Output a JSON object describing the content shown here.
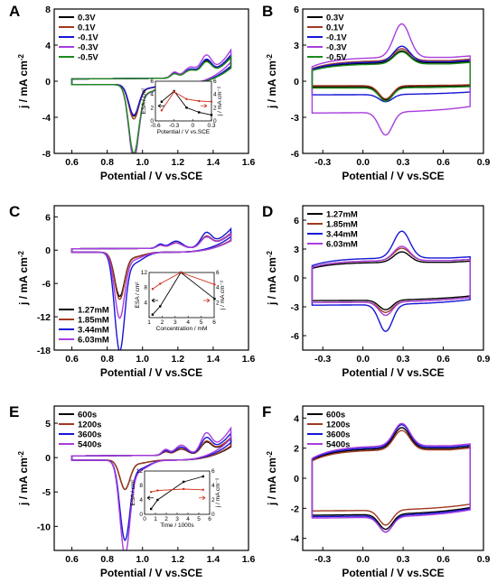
{
  "chart_data": [
    {
      "id": "A",
      "type": "line",
      "panel_letter": "A",
      "xlabel": "Potential / V vs.SCE",
      "ylabel": "j / mA cm⁻²",
      "xlim": [
        0.5,
        1.6
      ],
      "ylim": [
        -8,
        8
      ],
      "xticks": [
        0.6,
        0.8,
        1.0,
        1.2,
        1.4,
        1.6
      ],
      "xtick_labels": [
        "0.6",
        "0.8",
        "1.0",
        "1.2",
        "1.4",
        "1.6"
      ],
      "yticks": [
        -8,
        -4,
        0,
        4,
        8
      ],
      "ytick_labels": [
        "-8",
        "-4",
        "0",
        "4",
        "8"
      ],
      "legend_position": "top-left",
      "kind": "pt",
      "series": [
        {
          "name": "0.3V",
          "color": "#000000",
          "anodic": 3.2,
          "cathodic": -3.3
        },
        {
          "name": "0.1V",
          "color": "#a0391f",
          "anodic": 3.0,
          "cathodic": -3.6
        },
        {
          "name": "-0.1V",
          "color": "#1515d6",
          "anodic": 3.4,
          "cathodic": -3.2
        },
        {
          "name": "-0.3V",
          "color": "#a83dde",
          "anodic": 4.1,
          "cathodic": -7.8
        },
        {
          "name": "-0.5V",
          "color": "#1b8a1b",
          "anodic": 3.0,
          "cathodic": -7.2
        }
      ],
      "inset": {
        "xlabel": "Potential / V vs.SCE",
        "ylabel_left": "ESA / cm²",
        "ylabel_right": "j / mA cm⁻²",
        "xlim": [
          -0.6,
          0.3
        ],
        "xticks": [
          -0.6,
          -0.3,
          0,
          0.3
        ],
        "xtick_labels": [
          "-0.6",
          "-0.3",
          "0",
          "0.3"
        ],
        "ylim_left": [
          0,
          6
        ],
        "yticks_left": [
          0,
          2,
          4,
          6
        ],
        "ytick_labels_left": [
          "0",
          "2",
          "4",
          "6"
        ],
        "ylim_right": [
          0,
          6
        ],
        "yticks_right": [
          0,
          2,
          4,
          6
        ],
        "ytick_labels_right": [
          "0",
          "2",
          "4",
          "6"
        ],
        "x": [
          -0.5,
          -0.3,
          -0.1,
          0.1,
          0.3
        ],
        "esa": [
          2.9,
          4.5,
          2.0,
          1.3,
          0.9
        ],
        "j": [
          1.6,
          4.4,
          3.3,
          3.0,
          2.9
        ]
      }
    },
    {
      "id": "B",
      "type": "line",
      "panel_letter": "B",
      "xlabel": "Potential / V vs.SCE",
      "ylabel": "j / mA cm⁻²",
      "xlim": [
        -0.45,
        0.9
      ],
      "ylim": [
        -6,
        6
      ],
      "xticks": [
        -0.3,
        0.0,
        0.3,
        0.6,
        0.9
      ],
      "xtick_labels": [
        "-0.3",
        "0.0",
        "0.3",
        "0.6",
        "0.9"
      ],
      "yticks": [
        -6,
        -3,
        0,
        3,
        6
      ],
      "ytick_labels": [
        "-6",
        "-3",
        "0",
        "3",
        "6"
      ],
      "legend_position": "top-left",
      "kind": "fecn",
      "series": [
        {
          "name": "0.3V",
          "color": "#000000",
          "upper": 1.7,
          "lower": -0.5,
          "peakA": 1.0,
          "peakC": -1.1
        },
        {
          "name": "0.1V",
          "color": "#a0391f",
          "upper": 1.9,
          "lower": -0.4,
          "peakA": 1.0,
          "peakC": -1.1
        },
        {
          "name": "-0.1V",
          "color": "#1515d6",
          "upper": 1.8,
          "lower": -1.2,
          "peakA": 1.3,
          "peakC": -0.6
        },
        {
          "name": "-0.3V",
          "color": "#a83dde",
          "upper": 2.2,
          "lower": -2.8,
          "peakA": 2.8,
          "peakC": -1.9
        },
        {
          "name": "-0.5V",
          "color": "#1b8a1b",
          "upper": 1.6,
          "lower": -0.6,
          "peakA": 1.0,
          "peakC": -1.1
        }
      ]
    },
    {
      "id": "C",
      "type": "line",
      "panel_letter": "C",
      "xlabel": "Potential / V vs.SCE",
      "ylabel": "j / mA cm⁻²",
      "xlim": [
        0.5,
        1.6
      ],
      "ylim": [
        -18,
        8
      ],
      "xticks": [
        0.6,
        0.8,
        1.0,
        1.2,
        1.4,
        1.6
      ],
      "xtick_labels": [
        "0.6",
        "0.8",
        "1.0",
        "1.2",
        "1.4",
        "1.6"
      ],
      "yticks": [
        -18,
        -12,
        -6,
        0,
        6
      ],
      "ytick_labels": [
        "-18",
        "-12",
        "-6",
        "0",
        "6"
      ],
      "legend_position": "bottom-left",
      "kind": "pt",
      "peak_offset": -0.08,
      "series": [
        {
          "name": "1.27mM",
          "color": "#000000",
          "anodic": 3.4,
          "cathodic": -7.5
        },
        {
          "name": "1.85mM",
          "color": "#a0391f",
          "anodic": 3.6,
          "cathodic": -8.0
        },
        {
          "name": "3.44mM",
          "color": "#1515d6",
          "anodic": 4.6,
          "cathodic": -16.8
        },
        {
          "name": "6.03mM",
          "color": "#a83dde",
          "anodic": 3.4,
          "cathodic": -11.2
        }
      ],
      "inset": {
        "xlabel": "Concentration / mM",
        "ylabel_left": "ESA / cm²",
        "ylabel_right": "j / mA cm⁻²",
        "xlim": [
          1,
          6
        ],
        "xticks": [
          1,
          2,
          3,
          4,
          5,
          6
        ],
        "xtick_labels": [
          "1",
          "2",
          "3",
          "4",
          "5",
          "6"
        ],
        "ylim_left": [
          0,
          12
        ],
        "yticks_left": [
          4,
          8,
          12
        ],
        "ytick_labels_left": [
          "4",
          "8",
          "12"
        ],
        "ylim_right": [
          0,
          6
        ],
        "yticks_right": [
          2,
          4,
          6
        ],
        "ytick_labels_right": [
          "2",
          "4",
          "6"
        ],
        "x": [
          1.27,
          1.85,
          3.44,
          6.03
        ],
        "esa": [
          0.8,
          3.0,
          12.0,
          5.0
        ],
        "j": [
          3.8,
          4.5,
          6.0,
          4.4
        ]
      }
    },
    {
      "id": "D",
      "type": "line",
      "panel_letter": "D",
      "xlabel": "Potential / V vs.SCE",
      "ylabel": "j / mA cm⁻²",
      "xlim": [
        -0.45,
        0.9
      ],
      "ylim": [
        -7.5,
        7.5
      ],
      "xticks": [
        -0.3,
        0.0,
        0.3,
        0.6,
        0.9
      ],
      "xtick_labels": [
        "-0.3",
        "0.0",
        "0.3",
        "0.6",
        "0.9"
      ],
      "yticks": [
        -6,
        -3,
        0,
        3,
        6
      ],
      "ytick_labels": [
        "-6",
        "-3",
        "0",
        "3",
        "6"
      ],
      "legend_position": "top-left",
      "kind": "fecn",
      "series": [
        {
          "name": "1.27mM",
          "color": "#000000",
          "upper": 1.8,
          "lower": -2.5,
          "peakA": 1.1,
          "peakC": -1.0
        },
        {
          "name": "1.85mM",
          "color": "#a0391f",
          "upper": 2.0,
          "lower": -2.7,
          "peakA": 1.3,
          "peakC": -1.1
        },
        {
          "name": "3.44mM",
          "color": "#1515d6",
          "upper": 2.3,
          "lower": -3.0,
          "peakA": 2.8,
          "peakC": -2.8
        },
        {
          "name": "6.03mM",
          "color": "#a83dde",
          "upper": 2.0,
          "lower": -2.7,
          "peakA": 1.5,
          "peakC": -1.4
        }
      ]
    },
    {
      "id": "E",
      "type": "line",
      "panel_letter": "E",
      "xlabel": "Potential / V vs.SCE",
      "ylabel": "j / mA cm⁻²",
      "xlim": [
        0.5,
        1.6
      ],
      "ylim": [
        -13.5,
        7.5
      ],
      "xticks": [
        0.6,
        0.8,
        1.0,
        1.2,
        1.4,
        1.6
      ],
      "xtick_labels": [
        "0.6",
        "0.8",
        "1.0",
        "1.2",
        "1.4",
        "1.6"
      ],
      "yticks": [
        -10,
        -5,
        0,
        5
      ],
      "ytick_labels": [
        "-10",
        "-5",
        "0",
        "5"
      ],
      "legend_position": "top-left",
      "kind": "pt",
      "peak_offset": -0.05,
      "series": [
        {
          "name": "600s",
          "color": "#000000",
          "anodic": 3.2,
          "cathodic": -4.0
        },
        {
          "name": "1200s",
          "color": "#a0391f",
          "anodic": 3.4,
          "cathodic": -4.0
        },
        {
          "name": "3600s",
          "color": "#1515d6",
          "anodic": 4.2,
          "cathodic": -11.0
        },
        {
          "name": "5400s",
          "color": "#a83dde",
          "anodic": 5.2,
          "cathodic": -13.0
        }
      ],
      "inset": {
        "xlabel": "Time / 1000s",
        "ylabel_left": "ESA / cm²",
        "ylabel_right": "j / mA cm⁻²",
        "xlim": [
          0,
          6
        ],
        "xticks": [
          0,
          1,
          2,
          3,
          4,
          5,
          6
        ],
        "xtick_labels": [
          "0",
          "1",
          "2",
          "3",
          "4",
          "5",
          "6"
        ],
        "ylim_left": [
          0,
          12
        ],
        "yticks_left": [
          0,
          4,
          8,
          12
        ],
        "ytick_labels_left": [
          "0",
          "4",
          "8",
          "12"
        ],
        "ylim_right": [
          0,
          6
        ],
        "yticks_right": [
          0,
          2,
          4,
          6
        ],
        "ytick_labels_right": [
          "0",
          "2",
          "4",
          "6"
        ],
        "x": [
          0.6,
          1.2,
          3.6,
          5.4
        ],
        "esa": [
          1.5,
          4.0,
          9.0,
          10.5
        ],
        "j": [
          3.1,
          3.3,
          3.5,
          3.4
        ]
      }
    },
    {
      "id": "F",
      "type": "line",
      "panel_letter": "F",
      "xlabel": "Potential / V vs.SCE",
      "ylabel": "j / mA cm⁻²",
      "xlim": [
        -0.45,
        0.9
      ],
      "ylim": [
        -4.8,
        4.8
      ],
      "xticks": [
        -0.3,
        0.0,
        0.3,
        0.6,
        0.9
      ],
      "xtick_labels": [
        "-0.3",
        "0.0",
        "0.3",
        "0.6",
        "0.9"
      ],
      "yticks": [
        -4,
        -2,
        0,
        2,
        4
      ],
      "ytick_labels": [
        "-4",
        "-2",
        "0",
        "2",
        "4"
      ],
      "legend_position": "top-left",
      "kind": "fecn",
      "series": [
        {
          "name": "600s",
          "color": "#000000",
          "upper": 2.2,
          "lower": -2.6,
          "peakA": 1.4,
          "peakC": -1.0
        },
        {
          "name": "1200s",
          "color": "#a0391f",
          "upper": 2.1,
          "lower": -2.3,
          "peakA": 1.3,
          "peakC": -1.0
        },
        {
          "name": "3600s",
          "color": "#1515d6",
          "upper": 2.3,
          "lower": -2.7,
          "peakA": 1.5,
          "peakC": -1.1
        },
        {
          "name": "5400s",
          "color": "#a83dde",
          "upper": 2.4,
          "lower": -2.8,
          "peakA": 1.5,
          "peakC": -1.0
        }
      ]
    }
  ]
}
